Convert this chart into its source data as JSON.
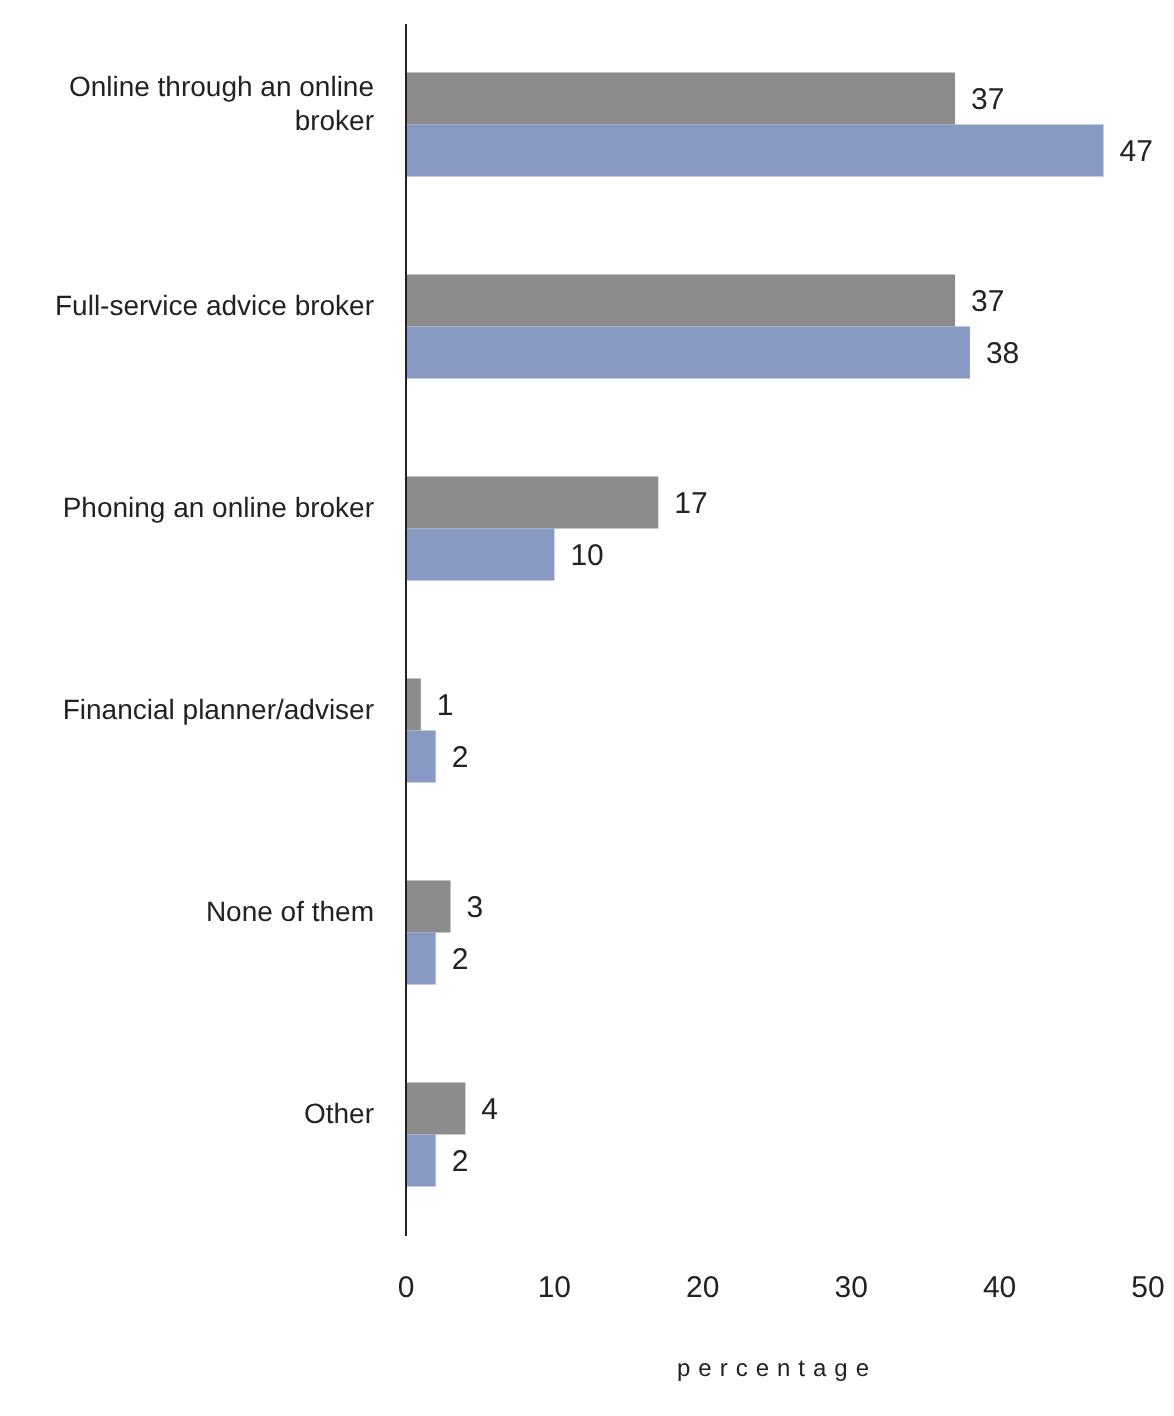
{
  "chart_data": {
    "type": "bar",
    "orientation": "horizontal",
    "xlabel": "percentage",
    "categories": [
      "Online through an online broker",
      "Full-service advice broker",
      "Phoning an online broker",
      "Financial planner/adviser",
      "None of them",
      "Other"
    ],
    "series": [
      {
        "color": "#8c8c8c",
        "values": [
          37,
          37,
          17,
          1,
          3,
          4
        ]
      },
      {
        "color": "#8899c4",
        "values": [
          47,
          38,
          10,
          2,
          2,
          2
        ]
      }
    ],
    "xlim": [
      0,
      50
    ],
    "xticks": [
      0,
      10,
      20,
      30,
      40,
      50
    ],
    "data_labels": true,
    "grid": false,
    "legend": false
  }
}
